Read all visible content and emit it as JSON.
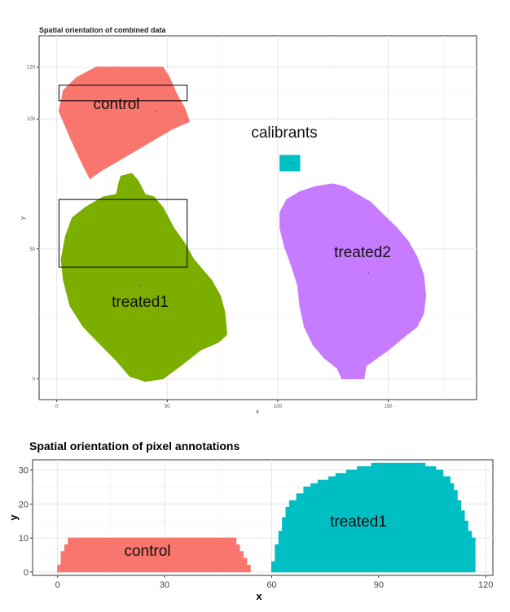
{
  "chart_data": [
    {
      "type": "area",
      "title": "Spatial orientation of combined data",
      "xlabel": "x",
      "ylabel": "y",
      "xlim": [
        -8,
        190
      ],
      "ylim": [
        -8,
        132
      ],
      "x_ticks": [
        0,
        50,
        100,
        150
      ],
      "y_ticks": [
        0,
        50,
        100,
        120
      ],
      "grid": true,
      "colors": {
        "control": "#f8766d",
        "calibrants": "#00bfc4",
        "treated1": "#7cae00",
        "treated2": "#c77cff"
      },
      "regions": [
        {
          "name": "control",
          "label": "control",
          "color": "#f8766d",
          "outline": [
            [
              18,
              120
            ],
            [
              48,
              120
            ],
            [
              51,
              116
            ],
            [
              54,
              110
            ],
            [
              58,
              104
            ],
            [
              60,
              99
            ],
            [
              52,
              96
            ],
            [
              44,
              92
            ],
            [
              36,
              88
            ],
            [
              28,
              84
            ],
            [
              20,
              80
            ],
            [
              15,
              77
            ],
            [
              12,
              82
            ],
            [
              7,
              91
            ],
            [
              1,
              103
            ],
            [
              3,
              111
            ],
            [
              9,
              116
            ]
          ],
          "marker": [
            45,
            103
          ]
        },
        {
          "name": "calibrants",
          "label": "calibrants",
          "color": "#00bfc4",
          "outline": [
            [
              101,
              86
            ],
            [
              110,
              86
            ],
            [
              110,
              80
            ],
            [
              101,
              80
            ]
          ],
          "marker": [
            105.5,
            83
          ]
        },
        {
          "name": "treated1",
          "label": "treated1",
          "color": "#7cae00",
          "outline": [
            [
              29,
              78
            ],
            [
              34,
              79
            ],
            [
              37,
              76
            ],
            [
              40,
              71
            ],
            [
              44,
              70
            ],
            [
              48,
              66
            ],
            [
              53,
              58
            ],
            [
              58,
              52
            ],
            [
              62,
              46
            ],
            [
              66,
              42
            ],
            [
              70,
              38
            ],
            [
              74,
              32
            ],
            [
              76,
              26
            ],
            [
              77,
              17
            ],
            [
              73,
              14
            ],
            [
              65,
              11
            ],
            [
              56,
              5
            ],
            [
              48,
              0
            ],
            [
              40,
              -1
            ],
            [
              33,
              1
            ],
            [
              27,
              7
            ],
            [
              20,
              13
            ],
            [
              12,
              20
            ],
            [
              6,
              28
            ],
            [
              3,
              38
            ],
            [
              2,
              46
            ],
            [
              4,
              55
            ],
            [
              7,
              62
            ],
            [
              13,
              66
            ],
            [
              21,
              70
            ],
            [
              27,
              71
            ],
            [
              28,
              75
            ]
          ],
          "marker": [
            38,
            36
          ]
        },
        {
          "name": "treated2",
          "label": "treated2",
          "color": "#c77cff",
          "outline": [
            [
              125,
              75
            ],
            [
              130,
              74
            ],
            [
              136,
              71
            ],
            [
              142,
              68
            ],
            [
              148,
              63
            ],
            [
              154,
              58
            ],
            [
              159,
              53
            ],
            [
              163,
              47
            ],
            [
              166,
              40
            ],
            [
              167,
              32
            ],
            [
              166,
              25
            ],
            [
              163,
              20
            ],
            [
              157,
              16
            ],
            [
              150,
              11
            ],
            [
              145,
              8
            ],
            [
              140,
              5
            ],
            [
              139,
              0
            ],
            [
              129,
              0
            ],
            [
              127,
              4
            ],
            [
              121,
              8
            ],
            [
              116,
              13
            ],
            [
              112,
              20
            ],
            [
              110,
              28
            ],
            [
              109,
              36
            ],
            [
              106,
              44
            ],
            [
              103,
              51
            ],
            [
              101,
              58
            ],
            [
              101,
              64
            ],
            [
              104,
              69
            ],
            [
              110,
              72
            ],
            [
              117,
              74
            ]
          ],
          "marker": [
            141,
            41
          ]
        }
      ],
      "annotation_boxes": [
        {
          "x": [
            1,
            59
          ],
          "y": [
            107,
            113
          ]
        },
        {
          "x": [
            1,
            59
          ],
          "y": [
            43,
            69
          ]
        }
      ]
    },
    {
      "type": "area",
      "title": "Spatial orientation of pixel annotations",
      "xlabel": "x",
      "ylabel": "y",
      "xlim": [
        -7,
        122
      ],
      "ylim": [
        -1,
        33
      ],
      "x_ticks": [
        0,
        30,
        60,
        90,
        120
      ],
      "y_ticks": [
        0,
        10,
        20,
        30
      ],
      "grid": true,
      "regions": [
        {
          "name": "control",
          "label": "control",
          "color": "#f8766d",
          "outline": [
            [
              0,
              0
            ],
            [
              0,
              2
            ],
            [
              1,
              2
            ],
            [
              1,
              6
            ],
            [
              2,
              6
            ],
            [
              2,
              8
            ],
            [
              3,
              8
            ],
            [
              3,
              10
            ],
            [
              50,
              10
            ],
            [
              50,
              8
            ],
            [
              51,
              8
            ],
            [
              51,
              6
            ],
            [
              52,
              6
            ],
            [
              52,
              4
            ],
            [
              53,
              4
            ],
            [
              53,
              2
            ],
            [
              54,
              2
            ],
            [
              54,
              0
            ]
          ],
          "marker": [
            26,
            5
          ]
        },
        {
          "name": "treated1",
          "label": "treated1",
          "color": "#00bfc4",
          "outline": [
            [
              60,
              0
            ],
            [
              60,
              3
            ],
            [
              61,
              3
            ],
            [
              61,
              8
            ],
            [
              62,
              8
            ],
            [
              62,
              12
            ],
            [
              63,
              12
            ],
            [
              63,
              16
            ],
            [
              64,
              16
            ],
            [
              64,
              19
            ],
            [
              65,
              19
            ],
            [
              65,
              21
            ],
            [
              67,
              21
            ],
            [
              67,
              23
            ],
            [
              69,
              23
            ],
            [
              69,
              25
            ],
            [
              71,
              25
            ],
            [
              71,
              26
            ],
            [
              73,
              26
            ],
            [
              73,
              27
            ],
            [
              76,
              27
            ],
            [
              76,
              28
            ],
            [
              78,
              28
            ],
            [
              78,
              29
            ],
            [
              81,
              29
            ],
            [
              81,
              30
            ],
            [
              84,
              30
            ],
            [
              84,
              31
            ],
            [
              88,
              31
            ],
            [
              88,
              32
            ],
            [
              103,
              32
            ],
            [
              103,
              31
            ],
            [
              106,
              31
            ],
            [
              106,
              30
            ],
            [
              108,
              30
            ],
            [
              108,
              28
            ],
            [
              110,
              28
            ],
            [
              110,
              26
            ],
            [
              111,
              26
            ],
            [
              111,
              24
            ],
            [
              112,
              24
            ],
            [
              112,
              21
            ],
            [
              113,
              21
            ],
            [
              113,
              18
            ],
            [
              114,
              18
            ],
            [
              114,
              15
            ],
            [
              115,
              15
            ],
            [
              115,
              12
            ],
            [
              116,
              12
            ],
            [
              116,
              10
            ],
            [
              117,
              10
            ],
            [
              117,
              0
            ]
          ],
          "marker": [
            89,
            15
          ]
        }
      ]
    }
  ]
}
